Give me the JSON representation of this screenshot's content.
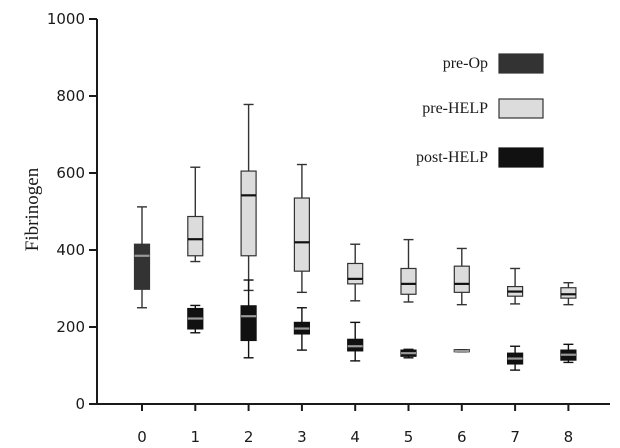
{
  "chart_data": {
    "type": "boxplot",
    "title": "",
    "xlabel": "",
    "ylabel": "Fibrinogen",
    "ylim": [
      0,
      1000
    ],
    "y_ticks": [
      "0",
      "200",
      "400",
      "600",
      "800",
      "1000"
    ],
    "x_ticks": [
      "0",
      "1",
      "2",
      "3",
      "4",
      "5",
      "6",
      "7",
      "8"
    ],
    "legend_placement": "top-right",
    "series": [
      {
        "name": "pre-Op",
        "color": "#333333",
        "boxes": [
          {
            "x": "0",
            "min": 250,
            "q1": 298,
            "median": 385,
            "q3": 415,
            "max": 512
          }
        ]
      },
      {
        "name": "pre-HELP",
        "color": "#dcdcdc",
        "boxes": [
          {
            "x": "1",
            "min": 370,
            "q1": 385,
            "median": 428,
            "q3": 487,
            "max": 615
          },
          {
            "x": "2",
            "min": 295,
            "q1": 385,
            "median": 542,
            "q3": 605,
            "max": 778
          },
          {
            "x": "3",
            "min": 290,
            "q1": 345,
            "median": 420,
            "q3": 535,
            "max": 622
          },
          {
            "x": "4",
            "min": 268,
            "q1": 312,
            "median": 325,
            "q3": 365,
            "max": 415
          },
          {
            "x": "5",
            "min": 265,
            "q1": 285,
            "median": 312,
            "q3": 352,
            "max": 427
          },
          {
            "x": "6",
            "min": 258,
            "q1": 290,
            "median": 312,
            "q3": 358,
            "max": 404
          },
          {
            "x": "7",
            "min": 260,
            "q1": 280,
            "median": 292,
            "q3": 305,
            "max": 352
          },
          {
            "x": "8",
            "min": 258,
            "q1": 275,
            "median": 285,
            "q3": 302,
            "max": 315
          }
        ]
      },
      {
        "name": "post-HELP",
        "color": "#111111",
        "boxes": [
          {
            "x": "1",
            "min": 185,
            "q1": 195,
            "median": 222,
            "q3": 248,
            "max": 256
          },
          {
            "x": "2",
            "min": 120,
            "q1": 165,
            "median": 228,
            "q3": 255,
            "max": 322
          },
          {
            "x": "3",
            "min": 140,
            "q1": 182,
            "median": 196,
            "q3": 212,
            "max": 250
          },
          {
            "x": "4",
            "min": 112,
            "q1": 138,
            "median": 150,
            "q3": 168,
            "max": 212
          },
          {
            "x": "5",
            "min": 120,
            "q1": 124,
            "median": 132,
            "q3": 140,
            "max": 142
          },
          {
            "x": "6",
            "min": 136,
            "q1": 136,
            "median": 138,
            "q3": 141,
            "max": 141
          },
          {
            "x": "7",
            "min": 88,
            "q1": 104,
            "median": 118,
            "q3": 132,
            "max": 150
          },
          {
            "x": "8",
            "min": 108,
            "q1": 114,
            "median": 128,
            "q3": 140,
            "max": 155
          }
        ]
      }
    ]
  }
}
